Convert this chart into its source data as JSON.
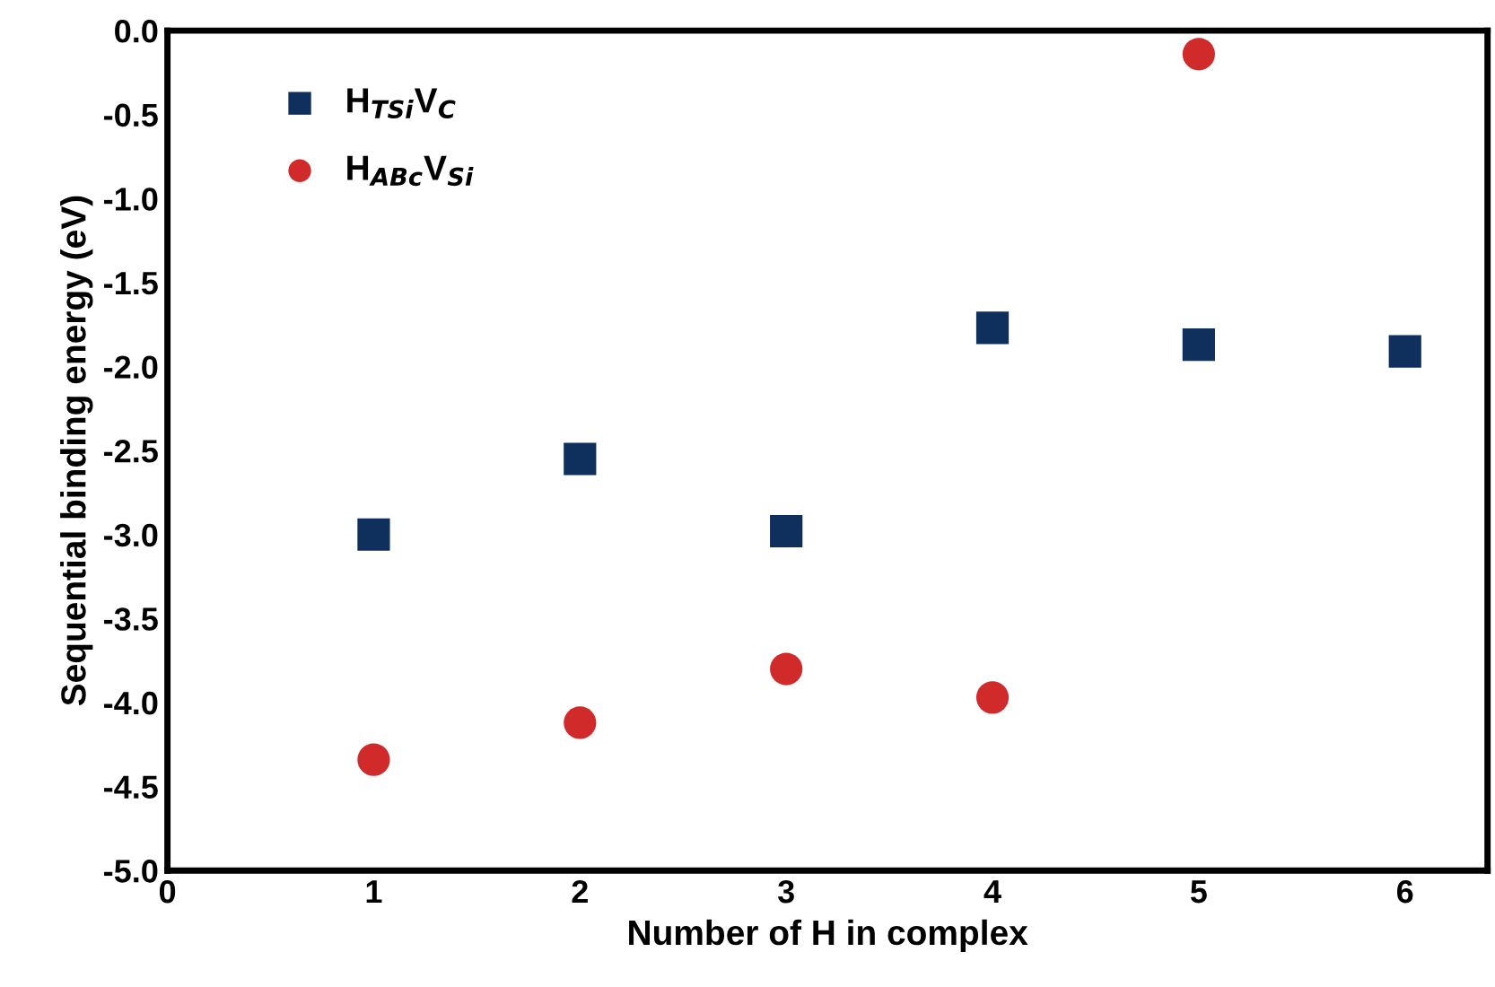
{
  "chart_data": {
    "type": "scatter",
    "xlabel": "Number of H in complex",
    "ylabel": "Sequential binding energy (eV)",
    "x": [
      1,
      2,
      3,
      4,
      5,
      6
    ],
    "series": [
      {
        "name": "H$_{TSi}$V$_{C}$",
        "color": "#0f2f5c",
        "marker": "square",
        "values": [
          -3.0,
          -2.55,
          -2.98,
          -1.77,
          -1.87,
          -1.91
        ]
      },
      {
        "name": "H$_{ABc}$V$_{Si}$",
        "color": "#d02a2a",
        "marker": "circle",
        "values": [
          -4.34,
          -4.12,
          -3.8,
          -3.97,
          -0.14,
          null
        ]
      }
    ],
    "xlim": [
      0,
      6.4
    ],
    "xticks": [
      0,
      1,
      2,
      3,
      4,
      5,
      6
    ],
    "ylim": [
      -5.0,
      0.0
    ],
    "yticks": [
      {
        "value": -5.0,
        "label": "-5.0"
      },
      {
        "value": -4.5,
        "label": "-4.5"
      },
      {
        "value": -4.0,
        "label": "-4.0"
      },
      {
        "value": -3.5,
        "label": "-3.5"
      },
      {
        "value": -3.0,
        "label": "-3.0"
      },
      {
        "value": -2.5,
        "label": "-2.5"
      },
      {
        "value": -2.0,
        "label": "-2.0"
      },
      {
        "value": -1.5,
        "label": "-1.5"
      },
      {
        "value": -1.0,
        "label": "-1.0"
      },
      {
        "value": -0.5,
        "label": "-0.5"
      },
      {
        "value": 0.0,
        "label": "0.0"
      }
    ],
    "grid": false,
    "legend": "top left"
  }
}
